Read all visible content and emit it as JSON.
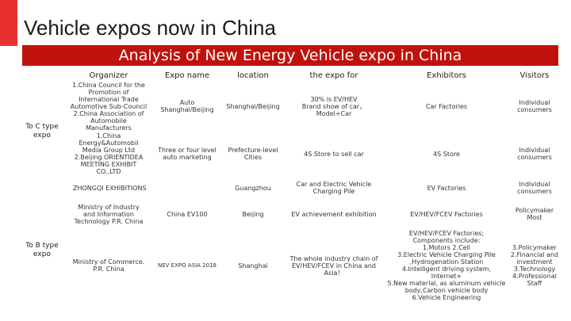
{
  "title": "Vehicle expos now in China",
  "subtitle": "Analysis of New Energy Vehicle expo in China",
  "headers": {
    "organizer": "Organizer",
    "expo_name": "Expo name",
    "location": "location",
    "expo_for": "the expo for",
    "exhibitors": "Exhibitors",
    "visitors": "Visitors"
  },
  "groups": {
    "c_type": "To C type expo",
    "b_type": "To B type expo"
  },
  "rows": [
    {
      "organizer": "1.China Council for the Promotion of International Trade Automotive Sub-Council\n2.China Association of Automobile Manufacturers",
      "expo_name": "Auto Shanghai/Beijing",
      "location": "Shanghai/Beijing",
      "expo_for": "30% is EV/HEV\nBrand show of car， Model+Car",
      "exhibitors": "Car Factories",
      "visitors": "Individual consumers"
    },
    {
      "organizer": "1.China Energy&Automobil Media Group Ltd\n2.Beijing ORIENTIDEA MEETING EXHIBIT CO.,LTD",
      "expo_name": "Three or four level auto marketing",
      "location": "Prefecture-level Cities",
      "expo_for": "4S Store to sell car",
      "exhibitors": "4S Store",
      "visitors": "Individual consumers"
    },
    {
      "organizer": "ZHONGQI EXHIBITIONS",
      "expo_name": "",
      "location": "Guangzhou",
      "expo_for": "Car and Electric Vehicle Charging Pile",
      "exhibitors": "EV Factories",
      "visitors": "Individual consumers"
    },
    {
      "organizer": "Ministry of Industry and Information Technology P.R. China",
      "expo_name": "China EV100",
      "location": "Beijing",
      "expo_for": "EV achievement exhibition",
      "exhibitors": "EV/HEV/FCEV Factories",
      "visitors": "Policymaker Most"
    },
    {
      "organizer": "Ministry of Commerce. P.R. China",
      "expo_name": "NEV EXPO ASIA 2018",
      "location": "Shanghai",
      "expo_for": "The whole industry chain of EV/HEV/FCEV in China and Asia！",
      "exhibitors": "EV/HEV/FCEV Factories;\nComponents include:\n1.Motors 2.Cell\n3.Electric Vehicle Charging Pile\n,Hydrogenation Station\n4.Intelligent driving system, Internet+\n5.New material, as aluminum vehicle body,Carbon vehicle body\n6.Vehicle Engineering",
      "visitors": "3.Policymaker\n2.Financial and investment\n3.Technology\n4.Professional Staff"
    }
  ]
}
